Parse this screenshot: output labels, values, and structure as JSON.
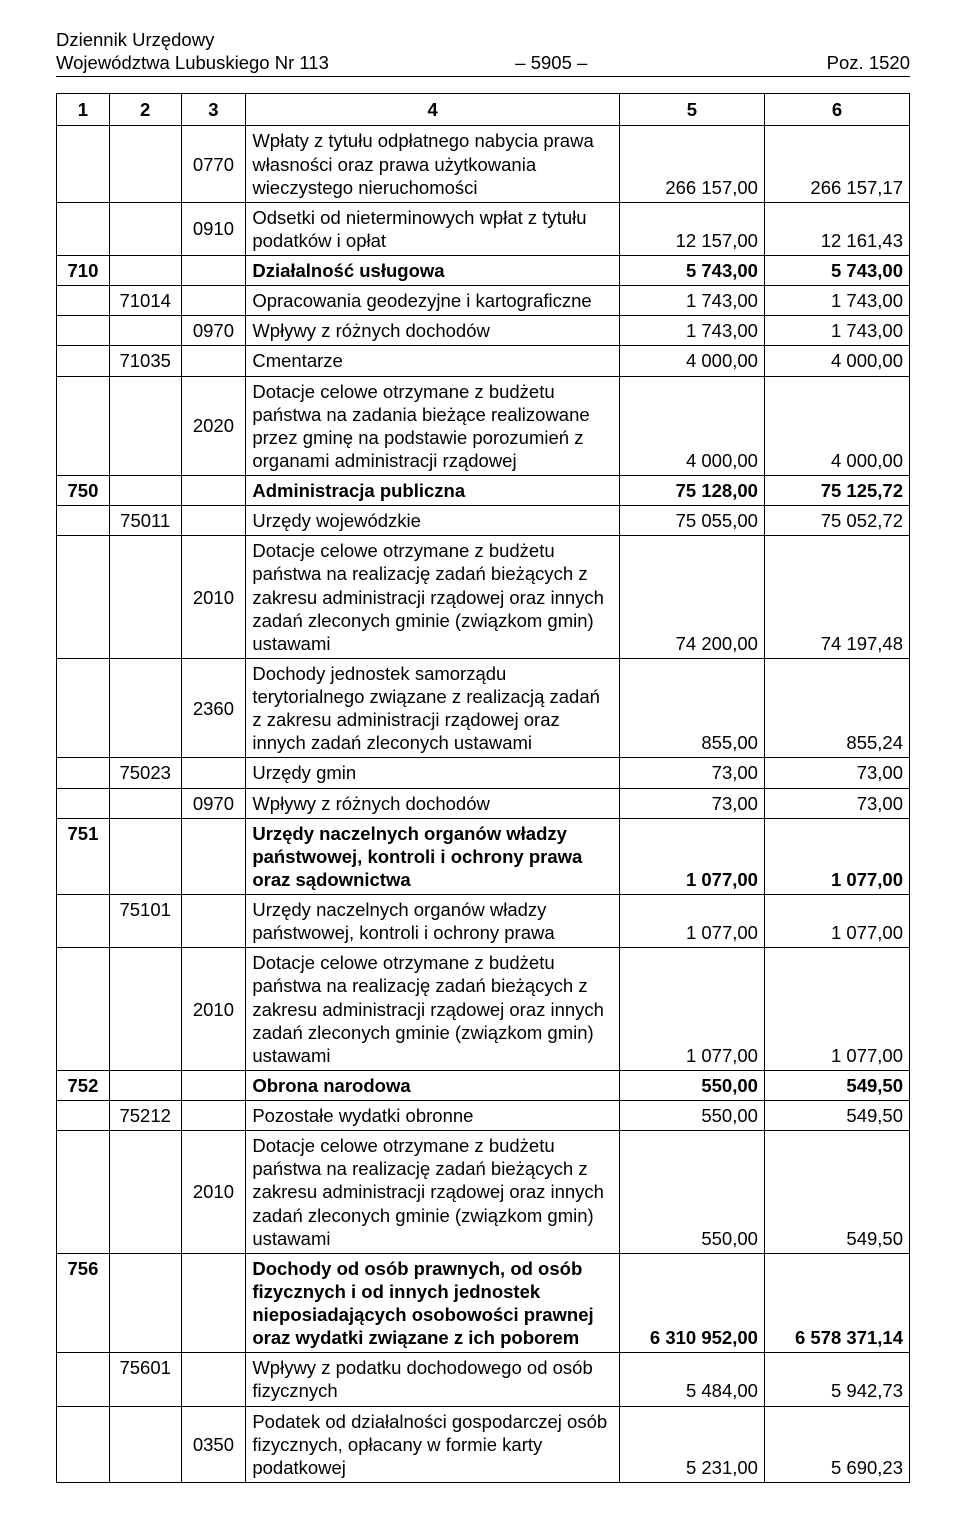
{
  "header": {
    "line1": "Dziennik Urzędowy",
    "line2_left": "Województwa Lubuskiego Nr 113",
    "line2_mid": "– 5905 –",
    "line2_right": "Poz. 1520"
  },
  "columns": [
    "1",
    "2",
    "3",
    "4",
    "5",
    "6"
  ],
  "style": {
    "font_size_pt": 14,
    "font_family": "Arial",
    "text_color": "#000000",
    "border_color": "#000000",
    "background": "#ffffff",
    "col_widths_pct": [
      6.2,
      8.4,
      7.6,
      43.8,
      17,
      17
    ]
  },
  "rows": [
    {
      "c1": "",
      "c2": "",
      "c3": "0770",
      "desc": "Wpłaty z tytułu odpłatnego nabycia prawa własności oraz prawa użytkowania wieczystego nieruchomości",
      "v5": "266 157,00",
      "v6": "266 157,17",
      "bold": false
    },
    {
      "c1": "",
      "c2": "",
      "c3": "0910",
      "desc": "Odsetki od nieterminowych wpłat z tytułu podatków i opłat",
      "v5": "12 157,00",
      "v6": "12 161,43",
      "bold": false
    },
    {
      "c1": "710",
      "c2": "",
      "c3": "",
      "desc": "Działalność usługowa",
      "v5": "5 743,00",
      "v6": "5 743,00",
      "bold": true
    },
    {
      "c1": "",
      "c2": "71014",
      "c3": "",
      "desc": "Opracowania geodezyjne i kartograficzne",
      "v5": "1 743,00",
      "v6": "1 743,00",
      "bold": false
    },
    {
      "c1": "",
      "c2": "",
      "c3": "0970",
      "desc": "Wpływy z różnych dochodów",
      "v5": "1 743,00",
      "v6": "1 743,00",
      "bold": false
    },
    {
      "c1": "",
      "c2": "71035",
      "c3": "",
      "desc": "Cmentarze",
      "v5": "4 000,00",
      "v6": "4 000,00",
      "bold": false
    },
    {
      "c1": "",
      "c2": "",
      "c3": "2020",
      "desc": "Dotacje celowe otrzymane z budżetu państwa na zadania bieżące realizowane przez gminę na podstawie porozumień z organami administracji rządowej",
      "v5": "4 000,00",
      "v6": "4 000,00",
      "bold": false
    },
    {
      "c1": "750",
      "c2": "",
      "c3": "",
      "desc": "Administracja publiczna",
      "v5": "75 128,00",
      "v6": "75 125,72",
      "bold": true
    },
    {
      "c1": "",
      "c2": "75011",
      "c3": "",
      "desc": "Urzędy wojewódzkie",
      "v5": "75 055,00",
      "v6": "75 052,72",
      "bold": false
    },
    {
      "c1": "",
      "c2": "",
      "c3": "2010",
      "desc": "Dotacje celowe otrzymane z budżetu państwa na realizację zadań bieżących z zakresu administracji rządowej oraz innych zadań zleconych gminie (związkom gmin) ustawami",
      "v5": "74 200,00",
      "v6": "74 197,48",
      "bold": false
    },
    {
      "c1": "",
      "c2": "",
      "c3": "2360",
      "desc": "Dochody jednostek samorządu terytorialnego związane z realizacją zadań z zakresu administracji rządowej oraz innych zadań zleconych ustawami",
      "v5": "855,00",
      "v6": "855,24",
      "bold": false
    },
    {
      "c1": "",
      "c2": "75023",
      "c3": "",
      "desc": "Urzędy gmin",
      "v5": "73,00",
      "v6": "73,00",
      "bold": false
    },
    {
      "c1": "",
      "c2": "",
      "c3": "0970",
      "desc": "Wpływy z różnych dochodów",
      "v5": "73,00",
      "v6": "73,00",
      "bold": false
    },
    {
      "c1": "751",
      "c2": "",
      "c3": "",
      "desc": "Urzędy naczelnych organów władzy państwowej, kontroli i ochrony prawa oraz sądownictwa",
      "v5": "1 077,00",
      "v6": "1 077,00",
      "bold": true
    },
    {
      "c1": "",
      "c2": "75101",
      "c3": "",
      "desc": "Urzędy naczelnych organów władzy państwowej, kontroli i ochrony prawa",
      "v5": "1 077,00",
      "v6": "1 077,00",
      "bold": false
    },
    {
      "c1": "",
      "c2": "",
      "c3": "2010",
      "desc": "Dotacje celowe otrzymane z budżetu państwa na realizację zadań bieżących z zakresu administracji rządowej oraz innych zadań zleconych gminie (związkom gmin) ustawami",
      "v5": "1 077,00",
      "v6": "1 077,00",
      "bold": false
    },
    {
      "c1": "752",
      "c2": "",
      "c3": "",
      "desc": "Obrona narodowa",
      "v5": "550,00",
      "v6": "549,50",
      "bold": true
    },
    {
      "c1": "",
      "c2": "75212",
      "c3": "",
      "desc": "Pozostałe wydatki obronne",
      "v5": "550,00",
      "v6": "549,50",
      "bold": false
    },
    {
      "c1": "",
      "c2": "",
      "c3": "2010",
      "desc": "Dotacje celowe otrzymane z budżetu państwa na realizację zadań bieżących z zakresu administracji rządowej oraz innych zadań zleconych gminie (związkom gmin) ustawami",
      "v5": "550,00",
      "v6": "549,50",
      "bold": false
    },
    {
      "c1": "756",
      "c2": "",
      "c3": "",
      "desc": "Dochody od osób prawnych, od osób fizycznych i od innych jednostek nieposiadających osobowości prawnej oraz wydatki związane z ich poborem",
      "v5": "6 310 952,00",
      "v6": "6 578 371,14",
      "bold": true
    },
    {
      "c1": "",
      "c2": "75601",
      "c3": "",
      "desc": "Wpływy z podatku dochodowego od osób fizycznych",
      "v5": "5 484,00",
      "v6": "5 942,73",
      "bold": false
    },
    {
      "c1": "",
      "c2": "",
      "c3": "0350",
      "desc": "Podatek od działalności gospodarczej osób fizycznych, opłacany w formie karty podatkowej",
      "v5": "5 231,00",
      "v6": "5 690,23",
      "bold": false
    }
  ]
}
